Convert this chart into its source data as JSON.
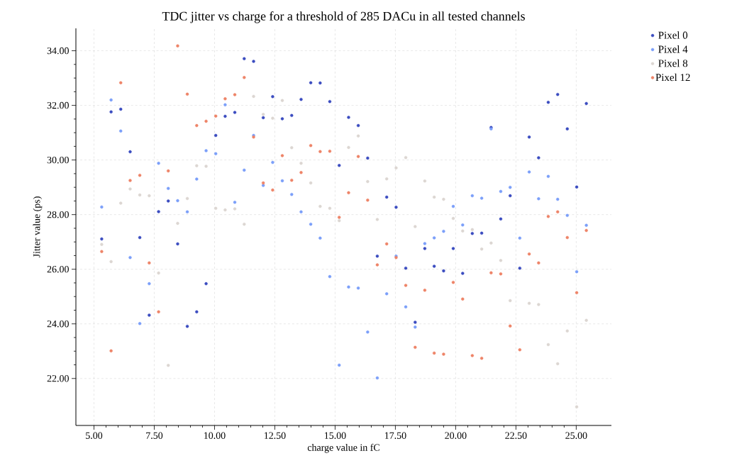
{
  "chart_data": {
    "type": "scatter",
    "title": "TDC jitter vs charge for a threshold of 285 DACu in all tested channels",
    "xlabel": "charge value in fC",
    "ylabel": "Jitter value (ps)",
    "x": [
      5.32,
      5.71,
      6.11,
      6.5,
      6.9,
      7.29,
      7.68,
      8.08,
      8.47,
      8.87,
      9.26,
      9.65,
      10.05,
      10.44,
      10.84,
      11.23,
      11.62,
      12.02,
      12.41,
      12.81,
      13.2,
      13.59,
      13.99,
      14.38,
      14.78,
      15.17,
      15.56,
      15.96,
      16.35,
      16.75,
      17.14,
      17.53,
      17.93,
      18.32,
      18.72,
      19.11,
      19.5,
      19.9,
      20.29,
      20.69,
      21.08,
      21.47,
      21.87,
      22.26,
      22.66,
      23.05,
      23.44,
      23.84,
      24.23,
      24.63,
      25.02,
      25.42
    ],
    "series": [
      {
        "name": "Pixel 0",
        "color": "#3b4cc0",
        "values": [
          27.11,
          31.76,
          31.86,
          30.3,
          27.16,
          24.32,
          28.11,
          28.5,
          26.93,
          23.91,
          24.44,
          25.47,
          30.9,
          31.6,
          31.74,
          33.71,
          33.61,
          31.55,
          32.32,
          31.51,
          31.63,
          32.22,
          32.83,
          32.82,
          32.14,
          29.8,
          31.56,
          31.26,
          30.07,
          26.48,
          28.64,
          28.27,
          26.04,
          24.06,
          26.76,
          26.11,
          25.94,
          26.76,
          25.85,
          27.31,
          27.32,
          31.19,
          27.84,
          28.69,
          26.04,
          30.84,
          30.08,
          32.11,
          32.4,
          31.14,
          29.01,
          32.07
        ]
      },
      {
        "name": "Pixel 4",
        "color": "#7b9ff9",
        "values": [
          28.28,
          32.2,
          31.06,
          26.43,
          24.01,
          25.47,
          29.88,
          28.96,
          28.51,
          28.1,
          29.3,
          30.34,
          30.23,
          32.02,
          28.45,
          29.63,
          30.9,
          29.07,
          29.91,
          29.24,
          28.74,
          28.1,
          27.65,
          27.14,
          25.73,
          22.49,
          25.35,
          25.31,
          23.7,
          22.02,
          25.1,
          26.48,
          24.62,
          23.88,
          26.94,
          27.15,
          27.39,
          28.3,
          27.62,
          28.69,
          28.6,
          31.14,
          28.85,
          29.0,
          27.14,
          29.56,
          28.58,
          29.4,
          28.56,
          27.97,
          25.91,
          27.61
        ]
      },
      {
        "name": "Pixel 8",
        "color": "#dcd6d2",
        "values": [
          26.91,
          26.28,
          28.42,
          28.94,
          28.72,
          28.69,
          25.86,
          22.48,
          27.68,
          28.59,
          29.79,
          29.77,
          28.23,
          28.17,
          28.21,
          27.65,
          32.33,
          31.67,
          31.53,
          32.18,
          30.45,
          29.88,
          29.16,
          28.3,
          28.23,
          27.78,
          30.46,
          30.88,
          29.21,
          27.82,
          29.31,
          29.71,
          30.09,
          27.56,
          29.23,
          28.64,
          28.56,
          27.86,
          27.4,
          27.45,
          26.74,
          26.96,
          26.32,
          24.85,
          null,
          24.75,
          24.71,
          23.24,
          22.54,
          23.74,
          20.96,
          24.13
        ]
      },
      {
        "name": "Pixel 12",
        "color": "#ee8468",
        "values": [
          26.65,
          23.01,
          32.83,
          29.25,
          29.44,
          26.23,
          24.44,
          29.6,
          34.18,
          32.41,
          31.26,
          31.42,
          31.61,
          32.24,
          32.39,
          33.02,
          30.84,
          29.16,
          28.9,
          30.16,
          29.26,
          29.54,
          30.53,
          30.31,
          30.32,
          27.9,
          28.8,
          30.13,
          28.53,
          26.16,
          26.93,
          26.43,
          25.41,
          23.14,
          25.23,
          22.93,
          22.89,
          25.52,
          24.91,
          22.84,
          22.74,
          25.87,
          25.83,
          23.92,
          23.05,
          26.56,
          26.23,
          27.93,
          28.1,
          27.16,
          25.14,
          27.42
        ]
      }
    ],
    "xlim": [
      4.25,
      26.46
    ],
    "ylim": [
      20.28,
      34.82
    ],
    "xticks": [
      {
        "value": 5,
        "label": "5.00"
      },
      {
        "value": 7.5,
        "label": "7.50"
      },
      {
        "value": 10,
        "label": "10.00"
      },
      {
        "value": 12.5,
        "label": "12.50"
      },
      {
        "value": 15,
        "label": "15.00"
      },
      {
        "value": 17.5,
        "label": "17.50"
      },
      {
        "value": 20,
        "label": "20.00"
      },
      {
        "value": 22.5,
        "label": "22.50"
      },
      {
        "value": 25,
        "label": "25.00"
      }
    ],
    "yticks": [
      {
        "value": 22,
        "label": "22.00"
      },
      {
        "value": 24,
        "label": "24.00"
      },
      {
        "value": 26,
        "label": "26.00"
      },
      {
        "value": 28,
        "label": "28.00"
      },
      {
        "value": 30,
        "label": "30.00"
      },
      {
        "value": 32,
        "label": "32.00"
      },
      {
        "value": 34,
        "label": "34.00"
      }
    ],
    "grid": true,
    "legend": "right",
    "marker": "circle"
  }
}
